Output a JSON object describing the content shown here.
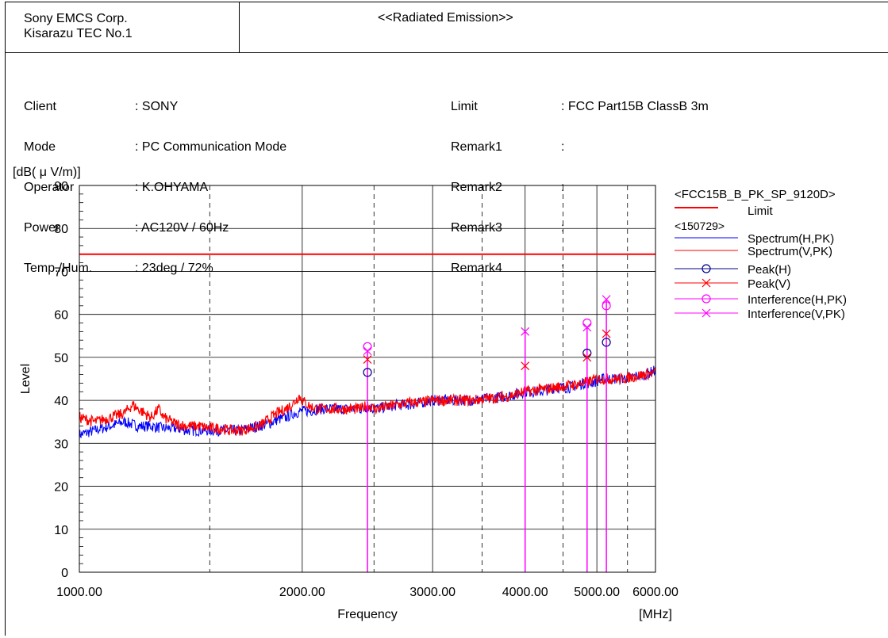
{
  "header": {
    "company_line1": "Sony EMCS Corp.",
    "company_line2": "Kisarazu TEC No.1",
    "report_title": "<<Radiated Emission>>"
  },
  "info_left": [
    {
      "label": "Client",
      "value": ": SONY"
    },
    {
      "label": "Mode",
      "value": ": PC Communication Mode"
    },
    {
      "label": "Operator",
      "value": ": K.OHYAMA"
    },
    {
      "label": "Power",
      "value": ": AC120V / 60Hz"
    },
    {
      "label": "Temp./Hum.",
      "value": ": 23deg / 72%"
    }
  ],
  "info_right": [
    {
      "label": "Limit",
      "value": ": FCC Part15B ClassB 3m"
    },
    {
      "label": "Remark1",
      "value": ":"
    },
    {
      "label": "Remark2",
      "value": ":"
    },
    {
      "label": "Remark3",
      "value": ":"
    },
    {
      "label": "Remark4",
      "value": ":"
    }
  ],
  "chart_data": {
    "type": "line",
    "ylabel": "Level",
    "yunit": "[dB( μ V/m)]",
    "xlabel": "Frequency",
    "xunit": "[MHz]",
    "xscale": "log",
    "xlim": [
      1000,
      6000
    ],
    "ylim": [
      0,
      90
    ],
    "yticks": [
      0,
      10,
      20,
      30,
      40,
      50,
      60,
      70,
      80,
      90
    ],
    "xtick_labels": [
      {
        "value": 1000,
        "label": "1000.00"
      },
      {
        "value": 2000,
        "label": "2000.00"
      },
      {
        "value": 3000,
        "label": "3000.00"
      },
      {
        "value": 4000,
        "label": "4000.00"
      },
      {
        "value": 5000,
        "label": "5000.00"
      },
      {
        "value": 6000,
        "label": "6000.00"
      }
    ],
    "grid": true,
    "legend_title": "<FCC15B_B_PK_SP_9120D>",
    "legend_subtitle": "<150729>",
    "colors": {
      "red": "#ff0000",
      "blue": "#0000ff",
      "magenta": "#ff00ff",
      "darkblue": "#00008b"
    },
    "limit": {
      "name": "Limit",
      "level": 74
    },
    "series": [
      {
        "name": "Spectrum(H,PK)",
        "color": "#0000ff",
        "x": [
          1000,
          1050,
          1100,
          1150,
          1200,
          1250,
          1300,
          1350,
          1400,
          1450,
          1500,
          1550,
          1600,
          1650,
          1700,
          1750,
          1800,
          1850,
          1900,
          1950,
          2000,
          2050,
          2100,
          2200,
          2300,
          2400,
          2450,
          2500,
          2600,
          2700,
          2800,
          2900,
          3000,
          3200,
          3400,
          3600,
          3800,
          4000,
          4200,
          4400,
          4600,
          4800,
          4900,
          5000,
          5100,
          5200,
          5400,
          5600,
          5800,
          6000
        ],
        "y": [
          32,
          33,
          34,
          35,
          34,
          34,
          33.5,
          33.5,
          33,
          33,
          33,
          33,
          33,
          33,
          33.5,
          34,
          34.5,
          35.5,
          36,
          37,
          37.5,
          37.5,
          38,
          38,
          38,
          38,
          38.5,
          38,
          38.5,
          39,
          39,
          39.5,
          40,
          40,
          40,
          40.5,
          41,
          42,
          42,
          43,
          43,
          44,
          44,
          44.5,
          45,
          45,
          45,
          45.5,
          46,
          47
        ]
      },
      {
        "name": "Spectrum(V,PK)",
        "color": "#ff0000",
        "x": [
          1000,
          1050,
          1100,
          1150,
          1180,
          1200,
          1250,
          1280,
          1300,
          1350,
          1400,
          1450,
          1500,
          1550,
          1600,
          1650,
          1700,
          1750,
          1800,
          1850,
          1900,
          1950,
          1980,
          2000,
          2050,
          2100,
          2200,
          2300,
          2400,
          2450,
          2500,
          2600,
          2700,
          2800,
          2900,
          3000,
          3200,
          3400,
          3600,
          3800,
          4000,
          4200,
          4400,
          4600,
          4800,
          4900,
          5000,
          5100,
          5200,
          5400,
          5600,
          5800,
          6000
        ],
        "y": [
          36,
          35,
          36,
          37,
          39,
          38,
          36,
          38,
          36,
          34.5,
          34,
          34,
          33.5,
          33.5,
          33,
          33,
          33.5,
          34,
          35.5,
          37,
          38,
          39.5,
          41,
          40,
          38.5,
          38,
          38,
          38,
          38,
          39,
          38,
          38.5,
          39,
          39.5,
          39.5,
          40,
          40,
          40,
          40.5,
          41,
          42,
          42.5,
          43,
          43.5,
          44,
          44.5,
          45,
          45,
          45,
          45,
          45.5,
          46,
          46.5
        ]
      },
      {
        "name": "Peak(H)",
        "marker": "circle",
        "color": "#00008b",
        "x": [
          2450,
          4850,
          5150
        ],
        "y": [
          46.5,
          51,
          53.5
        ]
      },
      {
        "name": "Peak(V)",
        "marker": "x",
        "color": "#ff0000",
        "x": [
          2450,
          4000,
          4850,
          5150
        ],
        "y": [
          49.5,
          48,
          50,
          55.5
        ]
      },
      {
        "name": "Interference(H,PK)",
        "marker": "circle",
        "color": "#ff00ff",
        "x": [
          2450,
          4850,
          5150
        ],
        "y": [
          52.5,
          58,
          62
        ]
      },
      {
        "name": "Interference(V,PK)",
        "marker": "x",
        "color": "#ff00ff",
        "x": [
          2450,
          4000,
          4850,
          5150
        ],
        "y": [
          51.5,
          56,
          57,
          63.5
        ]
      }
    ]
  }
}
